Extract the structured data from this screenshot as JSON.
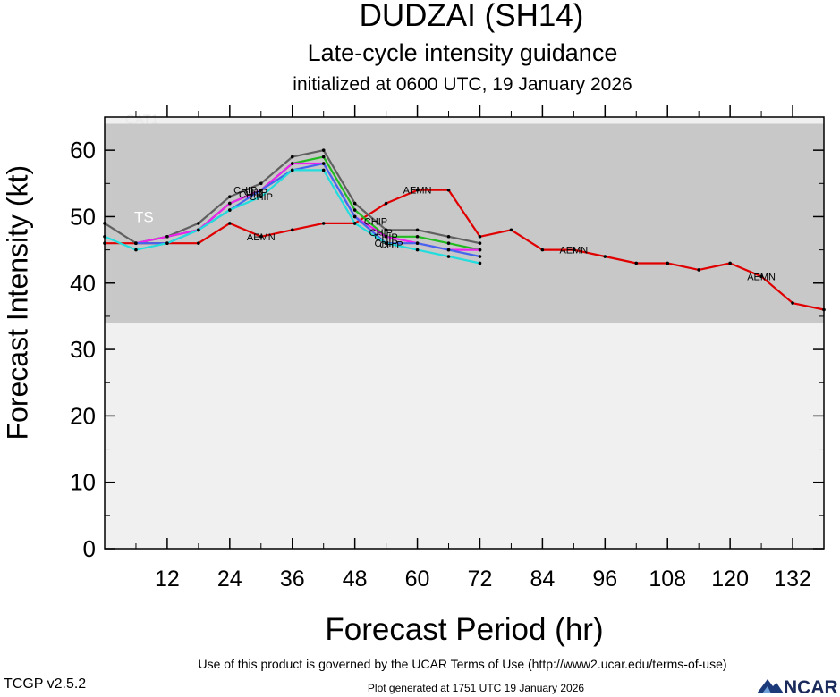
{
  "header": {
    "title": "DUDZAI (SH14)",
    "subtitle": "Late-cycle intensity guidance",
    "subtitle2": "initialized at 0600 UTC, 19 January 2026"
  },
  "footer": {
    "terms": "Use of this product is governed by the UCAR Terms of Use (http://www2.ucar.edu/terms-of-use)",
    "version": "TCGP v2.5.2",
    "generated": "Plot generated at 1751 UTC   19 January 2026",
    "logo_text": "NCAR"
  },
  "chart_data": {
    "type": "line",
    "xlabel": "Forecast Period (hr)",
    "ylabel": "Forecast Intensity (kt)",
    "xlim": [
      0,
      138
    ],
    "ylim": [
      0,
      65
    ],
    "xticks": [
      12,
      24,
      36,
      48,
      60,
      72,
      84,
      96,
      108,
      120,
      132
    ],
    "yticks": [
      0,
      10,
      20,
      30,
      40,
      50,
      60
    ],
    "bands": [
      {
        "label": "TS",
        "from": 34,
        "to": 64,
        "color": "#c8c8c8"
      },
      {
        "label": "CAT1",
        "from": 64,
        "to": 65,
        "color": "#f0f0f0"
      }
    ],
    "below_band_color": "#f0f0f0",
    "series": [
      {
        "name": "AEMN",
        "color": "#e00000",
        "x": [
          0,
          6,
          12,
          18,
          24,
          30,
          36,
          42,
          48,
          54,
          60,
          66,
          72,
          78,
          84,
          90,
          96,
          102,
          108,
          114,
          120,
          126,
          132,
          138
        ],
        "y": [
          46,
          46,
          46,
          46,
          49,
          47,
          48,
          49,
          49,
          52,
          54,
          54,
          47,
          48,
          45,
          45,
          44,
          43,
          43,
          42,
          43,
          41,
          37,
          36
        ],
        "label_at": [
          30,
          60,
          90,
          126
        ]
      },
      {
        "name": "CHIP",
        "color": "#606060",
        "x": [
          0,
          6,
          12,
          18,
          24,
          30,
          36,
          42,
          48,
          54,
          60,
          66,
          72
        ],
        "y": [
          49,
          46,
          47,
          49,
          53,
          55,
          59,
          60,
          52,
          48,
          48,
          47,
          46
        ],
        "label_at": [
          27,
          52
        ]
      },
      {
        "name": "CHIP",
        "color": "#22bb22",
        "x": [
          6,
          12,
          18,
          24,
          30,
          36,
          42,
          48,
          54,
          60,
          66,
          72
        ],
        "y": [
          46,
          47,
          48,
          52,
          54,
          58,
          59,
          51,
          47,
          47,
          46,
          45
        ],
        "label_at": [
          28,
          53
        ]
      },
      {
        "name": "CHIP",
        "color": "#ee22ee",
        "x": [
          6,
          12,
          18,
          24,
          30,
          36,
          42,
          48,
          54,
          60,
          66,
          72
        ],
        "y": [
          46,
          47,
          48,
          52,
          54,
          58,
          58,
          50,
          47,
          46,
          45,
          45
        ],
        "label_at": [
          29,
          54
        ]
      },
      {
        "name": "CHIP",
        "color": "#4466ee",
        "x": [
          6,
          12,
          18,
          24,
          30,
          36,
          42,
          48,
          54,
          60,
          66,
          72
        ],
        "y": [
          46,
          46,
          48,
          51,
          54,
          57,
          58,
          50,
          46,
          46,
          45,
          44
        ],
        "label_at": [
          54
        ]
      },
      {
        "name": "CHIP",
        "color": "#22dddd",
        "x": [
          0,
          6,
          12,
          18,
          24,
          30,
          36,
          42,
          48,
          54,
          60,
          66,
          72
        ],
        "y": [
          47,
          45,
          46,
          48,
          51,
          53,
          57,
          57,
          49,
          46,
          45,
          44,
          43
        ],
        "label_at": [
          30,
          55
        ]
      }
    ]
  }
}
